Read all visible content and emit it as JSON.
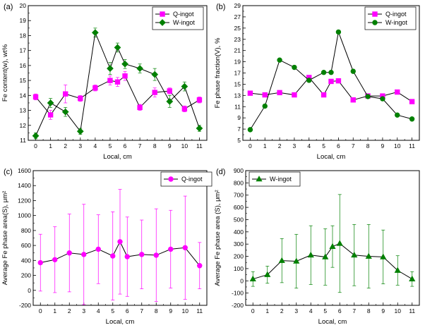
{
  "chart_data": [
    {
      "type": "line",
      "panel_label": "(a)",
      "xlabel": "Local, cm",
      "ylabel": "Fe content(w), wt%",
      "xlim": [
        -0.5,
        11.5
      ],
      "ylim": [
        11,
        20
      ],
      "xticks": [
        0,
        1,
        2,
        3,
        4,
        5,
        6,
        7,
        8,
        9,
        10,
        11
      ],
      "yticks": [
        11,
        12,
        13,
        14,
        15,
        16,
        17,
        18,
        19,
        20
      ],
      "legend_position": "top-right",
      "series": [
        {
          "name": "Q-ingot",
          "color": "#ff00ff",
          "marker": "square",
          "x": [
            0,
            1,
            2,
            3,
            4,
            5,
            5.5,
            6,
            7,
            8,
            9,
            10,
            11
          ],
          "y": [
            13.9,
            12.7,
            14.1,
            13.8,
            14.5,
            15.0,
            14.9,
            15.3,
            13.2,
            14.2,
            14.3,
            13.1,
            13.7
          ],
          "err": [
            0.2,
            0.3,
            0.6,
            0.2,
            0.2,
            0.3,
            0.3,
            0.3,
            0.2,
            0.3,
            0.2,
            0.2,
            0.2
          ]
        },
        {
          "name": "W-ingot",
          "color": "#008000",
          "marker": "diamond",
          "x": [
            0,
            1,
            2,
            3,
            4,
            5,
            5.5,
            6,
            7,
            8,
            9,
            10,
            11
          ],
          "y": [
            11.3,
            13.5,
            12.9,
            11.6,
            18.2,
            15.8,
            17.2,
            16.1,
            15.8,
            15.4,
            13.6,
            14.6,
            11.8
          ],
          "err": [
            0.2,
            0.3,
            0.3,
            0.2,
            0.3,
            0.4,
            0.3,
            0.3,
            0.3,
            0.4,
            0.4,
            0.3,
            0.2
          ]
        }
      ]
    },
    {
      "type": "line",
      "panel_label": "(b)",
      "xlabel": "Local, cm",
      "ylabel": "Fe phase fraction(V), %",
      "xlim": [
        -0.5,
        11.5
      ],
      "ylim": [
        5,
        29
      ],
      "xticks": [
        0,
        1,
        2,
        3,
        4,
        5,
        6,
        7,
        8,
        9,
        10,
        11
      ],
      "yticks": [
        5,
        7,
        9,
        11,
        13,
        15,
        17,
        19,
        21,
        23,
        25,
        27,
        29
      ],
      "legend_position": "top-right",
      "series": [
        {
          "name": "Q-ingot",
          "color": "#ff00ff",
          "marker": "square",
          "x": [
            0,
            1,
            2,
            3,
            4,
            5,
            5.5,
            6,
            7,
            8,
            9,
            10,
            11
          ],
          "y": [
            13.4,
            13.1,
            13.5,
            13.1,
            16.2,
            13.1,
            15.5,
            15.6,
            12.2,
            12.9,
            12.9,
            13.6,
            11.9
          ]
        },
        {
          "name": "W-ingot",
          "color": "#008000",
          "marker": "circle",
          "x": [
            0,
            1,
            2,
            3,
            4,
            5,
            5.5,
            6,
            7,
            8,
            9,
            10,
            11
          ],
          "y": [
            6.9,
            11.1,
            19.3,
            18.0,
            15.7,
            17.1,
            17.1,
            24.3,
            17.3,
            12.8,
            12.4,
            9.5,
            8.8
          ]
        }
      ]
    },
    {
      "type": "line",
      "panel_label": "(c)",
      "xlabel": "Local, cm",
      "ylabel": "Average Fe phase area(S), μm²",
      "xlim": [
        -0.5,
        11.5
      ],
      "ylim": [
        -200,
        1600
      ],
      "xticks": [
        0,
        1,
        2,
        3,
        4,
        5,
        6,
        7,
        8,
        9,
        10,
        11
      ],
      "yticks": [
        -200,
        0,
        200,
        400,
        600,
        800,
        1000,
        1200,
        1400,
        1600
      ],
      "legend_position": "top-right",
      "series": [
        {
          "name": "Q-ingot",
          "color": "#ff00ff",
          "marker": "circle",
          "x": [
            0,
            1,
            2,
            3,
            4,
            5,
            5.5,
            6,
            7,
            8,
            9,
            10,
            11
          ],
          "y": [
            370,
            410,
            500,
            480,
            550,
            460,
            650,
            450,
            480,
            470,
            550,
            570,
            330
          ],
          "err": [
            380,
            440,
            520,
            670,
            460,
            590,
            700,
            530,
            460,
            620,
            520,
            690,
            310
          ]
        }
      ]
    },
    {
      "type": "line",
      "panel_label": "(d)",
      "xlabel": "Local, cm",
      "ylabel": "Average Fe phase area (S), μm²",
      "xlim": [
        -0.5,
        11.5
      ],
      "ylim": [
        -200,
        900
      ],
      "xticks": [
        0,
        1,
        2,
        3,
        4,
        5,
        6,
        7,
        8,
        9,
        10,
        11
      ],
      "yticks": [
        -200,
        -100,
        0,
        100,
        200,
        300,
        400,
        500,
        600,
        700,
        800,
        900
      ],
      "legend_position": "top-left",
      "series": [
        {
          "name": "W-ingot",
          "color": "#008000",
          "marker": "triangle",
          "x": [
            0,
            1,
            2,
            3,
            4,
            5,
            5.5,
            6,
            7,
            8,
            9,
            10,
            11
          ],
          "y": [
            15,
            50,
            165,
            160,
            210,
            195,
            280,
            305,
            210,
            200,
            195,
            85,
            15
          ],
          "err": [
            60,
            70,
            180,
            220,
            240,
            230,
            170,
            400,
            250,
            260,
            220,
            120,
            60
          ]
        }
      ]
    }
  ]
}
